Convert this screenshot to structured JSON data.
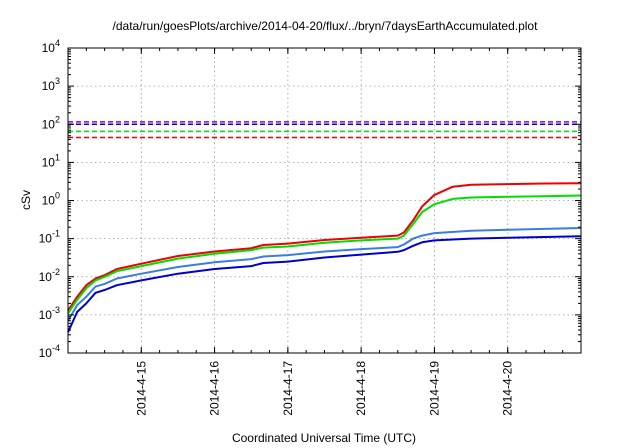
{
  "chart_data": {
    "type": "line",
    "title": "/data/run/goesPlots/archive/2014-04-20/flux/../bryn/7daysEarthAccumulated.plot",
    "xlabel": "Coordinated Universal Time (UTC)",
    "ylabel": "cSv",
    "yscale": "log",
    "ylim": [
      0.0001,
      10000
    ],
    "xlim": [
      "2014-04-14",
      "2014-04-21"
    ],
    "grid": true,
    "x_ticks": [
      "2014-4-15",
      "2014-4-16",
      "2014-4-17",
      "2014-4-18",
      "2014-4-19",
      "2014-4-20"
    ],
    "y_ticks": [
      {
        "base": "10",
        "exp": "-4"
      },
      {
        "base": "10",
        "exp": "-3"
      },
      {
        "base": "10",
        "exp": "-2"
      },
      {
        "base": "10",
        "exp": "-1"
      },
      {
        "base": "10",
        "exp": "0"
      },
      {
        "base": "10",
        "exp": "1"
      },
      {
        "base": "10",
        "exp": "2"
      },
      {
        "base": "10",
        "exp": "3"
      },
      {
        "base": "10",
        "exp": "4"
      }
    ],
    "reference_lines": [
      {
        "value": 115,
        "color": "#9400d3"
      },
      {
        "value": 100,
        "color": "#0000cc"
      },
      {
        "value": 65,
        "color": "#00dd00"
      },
      {
        "value": 45,
        "color": "#ee0000"
      }
    ],
    "series": [
      {
        "color": "#ee0000",
        "points": [
          [
            "2014-04-14 00:00",
            0.0013
          ],
          [
            "2014-04-14 03:00",
            0.003
          ],
          [
            "2014-04-14 06:00",
            0.006
          ],
          [
            "2014-04-14 09:00",
            0.009
          ],
          [
            "2014-04-14 12:00",
            0.011
          ],
          [
            "2014-04-14 16:00",
            0.016
          ],
          [
            "2014-04-15 00:00",
            0.022
          ],
          [
            "2014-04-15 12:00",
            0.035
          ],
          [
            "2014-04-16 00:00",
            0.046
          ],
          [
            "2014-04-16 12:00",
            0.056
          ],
          [
            "2014-04-16 16:00",
            0.068
          ],
          [
            "2014-04-17 00:00",
            0.074
          ],
          [
            "2014-04-17 12:00",
            0.092
          ],
          [
            "2014-04-18 00:00",
            0.105
          ],
          [
            "2014-04-18 12:00",
            0.12
          ],
          [
            "2014-04-18 14:00",
            0.145
          ],
          [
            "2014-04-18 17:00",
            0.3
          ],
          [
            "2014-04-18 20:00",
            0.7
          ],
          [
            "2014-04-19 00:00",
            1.4
          ],
          [
            "2014-04-19 06:00",
            2.3
          ],
          [
            "2014-04-19 12:00",
            2.6
          ],
          [
            "2014-04-20 00:00",
            2.7
          ],
          [
            "2014-04-20 12:00",
            2.8
          ],
          [
            "2014-04-21 00:00",
            2.85
          ]
        ]
      },
      {
        "color": "#00dd00",
        "points": [
          [
            "2014-04-14 00:00",
            0.0011
          ],
          [
            "2014-04-14 03:00",
            0.0025
          ],
          [
            "2014-04-14 06:00",
            0.005
          ],
          [
            "2014-04-14 09:00",
            0.008
          ],
          [
            "2014-04-14 12:00",
            0.01
          ],
          [
            "2014-04-14 16:00",
            0.014
          ],
          [
            "2014-04-15 00:00",
            0.019
          ],
          [
            "2014-04-15 12:00",
            0.03
          ],
          [
            "2014-04-16 00:00",
            0.04
          ],
          [
            "2014-04-16 12:00",
            0.05
          ],
          [
            "2014-04-16 16:00",
            0.058
          ],
          [
            "2014-04-17 00:00",
            0.062
          ],
          [
            "2014-04-17 12:00",
            0.078
          ],
          [
            "2014-04-18 00:00",
            0.09
          ],
          [
            "2014-04-18 12:00",
            0.1
          ],
          [
            "2014-04-18 14:00",
            0.12
          ],
          [
            "2014-04-18 17:00",
            0.24
          ],
          [
            "2014-04-18 20:00",
            0.5
          ],
          [
            "2014-04-19 00:00",
            0.8
          ],
          [
            "2014-04-19 06:00",
            1.1
          ],
          [
            "2014-04-19 12:00",
            1.2
          ],
          [
            "2014-04-20 00:00",
            1.25
          ],
          [
            "2014-04-20 12:00",
            1.3
          ],
          [
            "2014-04-21 00:00",
            1.35
          ]
        ]
      },
      {
        "color": "#3a7de0",
        "points": [
          [
            "2014-04-14 00:00",
            0.0007
          ],
          [
            "2014-04-14 03:00",
            0.0018
          ],
          [
            "2014-04-14 06:00",
            0.003
          ],
          [
            "2014-04-14 09:00",
            0.0055
          ],
          [
            "2014-04-14 12:00",
            0.0065
          ],
          [
            "2014-04-14 16:00",
            0.009
          ],
          [
            "2014-04-15 00:00",
            0.012
          ],
          [
            "2014-04-15 12:00",
            0.018
          ],
          [
            "2014-04-16 00:00",
            0.024
          ],
          [
            "2014-04-16 12:00",
            0.029
          ],
          [
            "2014-04-16 16:00",
            0.034
          ],
          [
            "2014-04-17 00:00",
            0.037
          ],
          [
            "2014-04-17 12:00",
            0.046
          ],
          [
            "2014-04-18 00:00",
            0.053
          ],
          [
            "2014-04-18 12:00",
            0.06
          ],
          [
            "2014-04-18 14:00",
            0.07
          ],
          [
            "2014-04-18 17:00",
            0.1
          ],
          [
            "2014-04-18 20:00",
            0.12
          ],
          [
            "2014-04-19 00:00",
            0.14
          ],
          [
            "2014-04-19 12:00",
            0.16
          ],
          [
            "2014-04-20 00:00",
            0.17
          ],
          [
            "2014-04-20 12:00",
            0.18
          ],
          [
            "2014-04-21 00:00",
            0.19
          ]
        ]
      },
      {
        "color": "#0000cc",
        "points": [
          [
            "2014-04-14 00:00",
            0.00035
          ],
          [
            "2014-04-14 03:00",
            0.0012
          ],
          [
            "2014-04-14 06:00",
            0.002
          ],
          [
            "2014-04-14 09:00",
            0.0038
          ],
          [
            "2014-04-14 12:00",
            0.0045
          ],
          [
            "2014-04-14 16:00",
            0.006
          ],
          [
            "2014-04-15 00:00",
            0.008
          ],
          [
            "2014-04-15 12:00",
            0.012
          ],
          [
            "2014-04-16 00:00",
            0.016
          ],
          [
            "2014-04-16 12:00",
            0.019
          ],
          [
            "2014-04-16 16:00",
            0.023
          ],
          [
            "2014-04-17 00:00",
            0.025
          ],
          [
            "2014-04-17 12:00",
            0.032
          ],
          [
            "2014-04-18 00:00",
            0.038
          ],
          [
            "2014-04-18 12:00",
            0.045
          ],
          [
            "2014-04-18 14:00",
            0.05
          ],
          [
            "2014-04-18 17:00",
            0.065
          ],
          [
            "2014-04-18 20:00",
            0.08
          ],
          [
            "2014-04-19 00:00",
            0.09
          ],
          [
            "2014-04-19 12:00",
            0.1
          ],
          [
            "2014-04-20 00:00",
            0.105
          ],
          [
            "2014-04-20 12:00",
            0.11
          ],
          [
            "2014-04-21 00:00",
            0.115
          ]
        ]
      }
    ]
  }
}
